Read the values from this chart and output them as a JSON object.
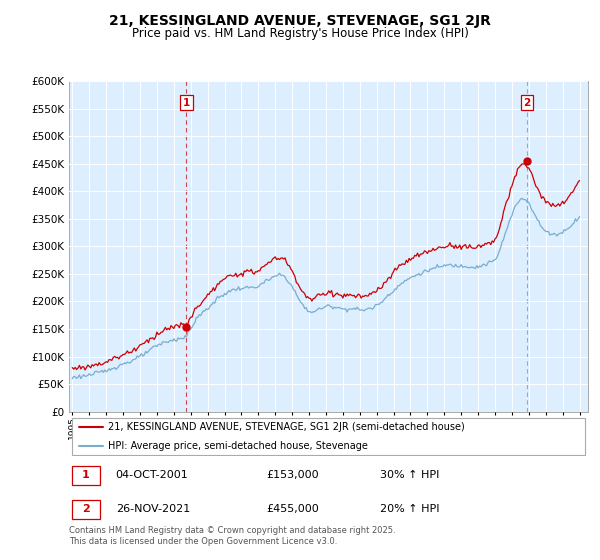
{
  "title": "21, KESSINGLAND AVENUE, STEVENAGE, SG1 2JR",
  "subtitle": "Price paid vs. HM Land Registry's House Price Index (HPI)",
  "legend_line1": "21, KESSINGLAND AVENUE, STEVENAGE, SG1 2JR (semi-detached house)",
  "legend_line2": "HPI: Average price, semi-detached house, Stevenage",
  "annotation1_date": "04-OCT-2001",
  "annotation1_price": "£153,000",
  "annotation1_hpi": "30% ↑ HPI",
  "annotation2_date": "26-NOV-2021",
  "annotation2_price": "£455,000",
  "annotation2_hpi": "20% ↑ HPI",
  "footnote": "Contains HM Land Registry data © Crown copyright and database right 2025.\nThis data is licensed under the Open Government Licence v3.0.",
  "red_color": "#cc0000",
  "blue_color": "#7aadce",
  "bg_color": "#ddeeff",
  "marker1_x": 2001.75,
  "marker1_y": 153000,
  "marker2_x": 2021.9,
  "marker2_y": 455000,
  "vline1_x": 2001.75,
  "vline2_x": 2021.9,
  "ylim": [
    0,
    600000
  ],
  "xlim": [
    1994.8,
    2025.5
  ],
  "yticks": [
    0,
    50000,
    100000,
    150000,
    200000,
    250000,
    300000,
    350000,
    400000,
    450000,
    500000,
    550000,
    600000
  ],
  "xticks": [
    1995,
    1996,
    1997,
    1998,
    1999,
    2000,
    2001,
    2002,
    2003,
    2004,
    2005,
    2006,
    2007,
    2008,
    2009,
    2010,
    2011,
    2012,
    2013,
    2014,
    2015,
    2016,
    2017,
    2018,
    2019,
    2020,
    2021,
    2022,
    2023,
    2024,
    2025
  ]
}
